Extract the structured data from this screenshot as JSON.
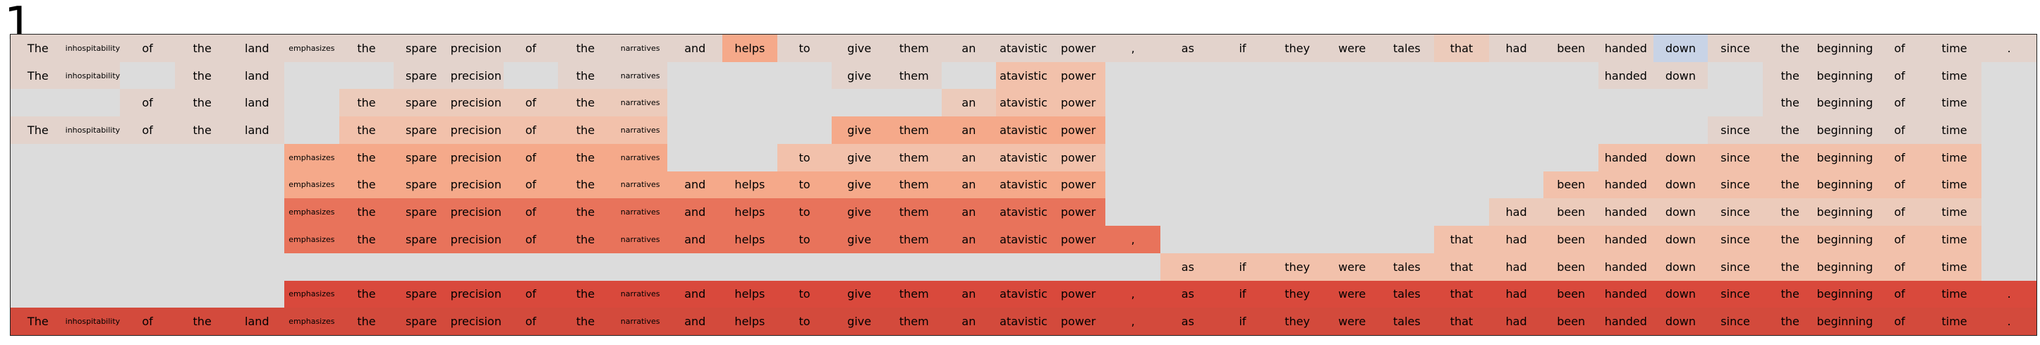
{
  "figure_label": "1",
  "tokens": [
    "The",
    "inhospitability",
    "of",
    "the",
    "land",
    "emphasizes",
    "the",
    "spare",
    "precision",
    "of",
    "the",
    "narratives",
    "and",
    "helps",
    "to",
    "give",
    "them",
    "an",
    "atavistic",
    "power",
    ",",
    "as",
    "if",
    "they",
    "were",
    "tales",
    "that",
    "had",
    "been",
    "handed",
    "down",
    "since",
    "the",
    "beginning",
    "of",
    "time",
    "."
  ],
  "small_token_indices": [
    1,
    5,
    11
  ],
  "colors": {
    "background": "#dcdcdc",
    "palette": [
      "#dcdcdc",
      "#e3d3cc",
      "#eccbbb",
      "#f2c1ab",
      "#f5a98a",
      "#ee8e72",
      "#e8735b",
      "#d9493c",
      "#d34a3c"
    ],
    "blue": "#c8d3e6"
  },
  "rows": [
    [
      1,
      1,
      1,
      1,
      1,
      1,
      1,
      1,
      1,
      1,
      1,
      1,
      1,
      4,
      1,
      1,
      1,
      1,
      1,
      1,
      1,
      1,
      1,
      1,
      1,
      1,
      2,
      1,
      1,
      1,
      "b",
      1,
      1,
      1,
      1,
      1,
      1
    ],
    [
      1,
      1,
      0,
      1,
      1,
      0,
      0,
      1,
      1,
      0,
      1,
      1,
      0,
      0,
      0,
      1,
      1,
      0,
      3,
      3,
      0,
      0,
      0,
      0,
      0,
      0,
      0,
      0,
      0,
      1,
      1,
      0,
      1,
      1,
      1,
      1,
      0
    ],
    [
      0,
      0,
      1,
      1,
      1,
      0,
      2,
      2,
      2,
      2,
      2,
      2,
      0,
      0,
      0,
      0,
      0,
      2,
      3,
      3,
      0,
      0,
      0,
      0,
      0,
      0,
      0,
      0,
      0,
      0,
      0,
      0,
      1,
      1,
      1,
      1,
      0
    ],
    [
      1,
      1,
      1,
      1,
      1,
      0,
      3,
      3,
      3,
      3,
      3,
      3,
      0,
      0,
      0,
      4,
      4,
      4,
      4,
      4,
      0,
      0,
      0,
      0,
      0,
      0,
      0,
      0,
      0,
      0,
      0,
      1,
      1,
      1,
      1,
      1,
      0
    ],
    [
      0,
      0,
      0,
      0,
      0,
      4,
      4,
      4,
      4,
      4,
      4,
      4,
      0,
      0,
      3,
      3,
      3,
      3,
      3,
      3,
      0,
      0,
      0,
      0,
      0,
      0,
      0,
      0,
      0,
      3,
      3,
      3,
      3,
      3,
      3,
      3,
      0
    ],
    [
      0,
      0,
      0,
      0,
      0,
      4,
      4,
      4,
      4,
      4,
      4,
      4,
      4,
      4,
      4,
      4,
      4,
      4,
      4,
      4,
      0,
      0,
      0,
      0,
      0,
      0,
      0,
      0,
      3,
      3,
      3,
      3,
      3,
      3,
      3,
      3,
      0
    ],
    [
      0,
      0,
      0,
      0,
      0,
      6,
      6,
      6,
      6,
      6,
      6,
      6,
      6,
      6,
      6,
      6,
      6,
      6,
      6,
      6,
      0,
      0,
      0,
      0,
      0,
      0,
      0,
      2,
      2,
      2,
      2,
      2,
      2,
      2,
      2,
      2,
      0
    ],
    [
      0,
      0,
      0,
      0,
      0,
      6,
      6,
      6,
      6,
      6,
      6,
      6,
      6,
      6,
      6,
      6,
      6,
      6,
      6,
      6,
      6,
      0,
      0,
      0,
      0,
      0,
      3,
      3,
      3,
      3,
      3,
      3,
      3,
      3,
      3,
      3,
      0
    ],
    [
      0,
      0,
      0,
      0,
      0,
      0,
      0,
      0,
      0,
      0,
      0,
      0,
      0,
      0,
      0,
      0,
      0,
      0,
      0,
      0,
      0,
      3,
      3,
      3,
      3,
      3,
      3,
      3,
      3,
      3,
      3,
      3,
      3,
      3,
      3,
      3,
      0
    ],
    [
      0,
      0,
      0,
      0,
      0,
      7,
      7,
      7,
      7,
      7,
      7,
      7,
      7,
      7,
      7,
      7,
      7,
      7,
      7,
      7,
      7,
      7,
      7,
      7,
      7,
      7,
      7,
      7,
      7,
      7,
      7,
      7,
      7,
      7,
      7,
      7,
      7
    ],
    [
      8,
      8,
      8,
      8,
      8,
      8,
      8,
      8,
      8,
      8,
      8,
      8,
      8,
      8,
      8,
      8,
      8,
      8,
      8,
      8,
      8,
      8,
      8,
      8,
      8,
      8,
      8,
      8,
      8,
      8,
      8,
      8,
      8,
      8,
      8,
      8,
      8
    ]
  ]
}
